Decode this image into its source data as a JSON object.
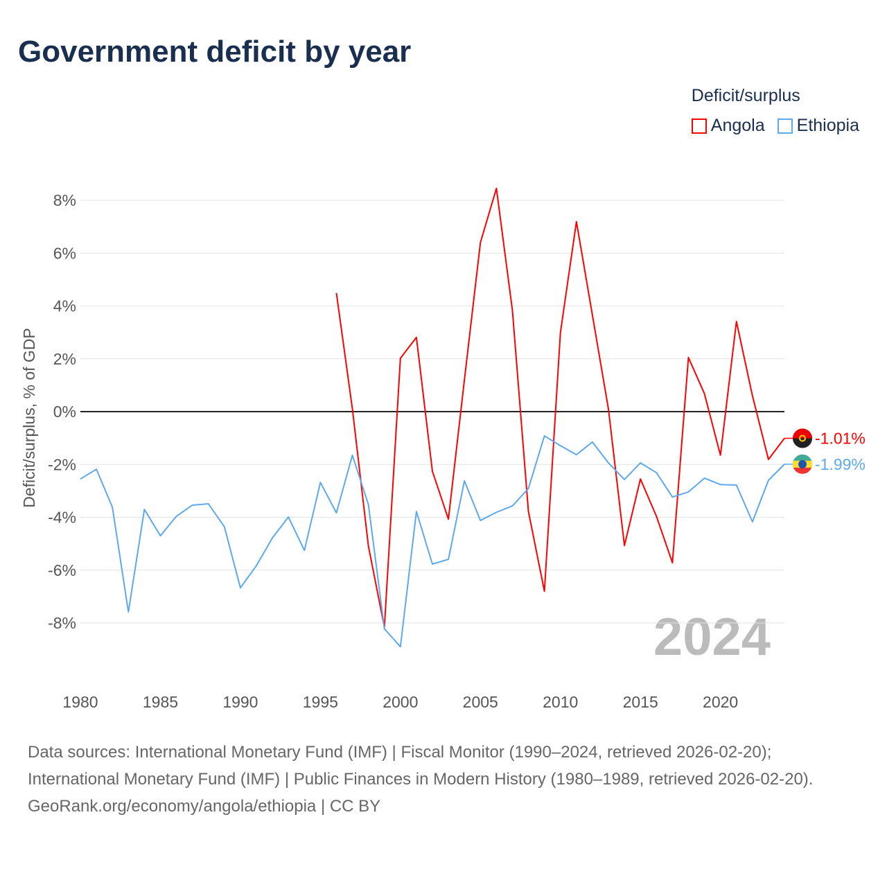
{
  "chart_data": {
    "type": "line",
    "title": "Government deficit by year",
    "xlabel": "",
    "ylabel": "Deficit/surplus, % of GDP",
    "xlim": [
      1980,
      2024
    ],
    "ylim": [
      -10,
      8.5
    ],
    "yticks": [
      8,
      6,
      4,
      2,
      0,
      -2,
      -4,
      -6,
      -8
    ],
    "ytick_labels": [
      "8%",
      "6%",
      "4%",
      "2%",
      "0%",
      "-2%",
      "-4%",
      "-6%",
      "-8%"
    ],
    "xticks": [
      1980,
      1985,
      1990,
      1995,
      2000,
      2005,
      2010,
      2015,
      2020
    ],
    "xtick_labels": [
      "1980",
      "1985",
      "1990",
      "1995",
      "2000",
      "2005",
      "2010",
      "2015",
      "2020"
    ],
    "grid": true,
    "legend_title": "Deficit/surplus",
    "legend_position": "top-right",
    "year_watermark": "2024",
    "series": [
      {
        "name": "Angola",
        "color": "#ff0000",
        "end_label": "-1.01%",
        "x": [
          1996,
          1997,
          1998,
          1999,
          2000,
          2001,
          2002,
          2003,
          2004,
          2005,
          2006,
          2007,
          2008,
          2009,
          2010,
          2011,
          2012,
          2013,
          2014,
          2015,
          2016,
          2017,
          2018,
          2019,
          2020,
          2021,
          2022,
          2023,
          2024
        ],
        "values": [
          4.49,
          0.1,
          -5.09,
          -8.16,
          2.02,
          2.81,
          -2.26,
          -4.07,
          1.2,
          6.4,
          8.45,
          3.83,
          -3.78,
          -6.8,
          2.99,
          7.19,
          3.65,
          0.1,
          -5.07,
          -2.55,
          -3.96,
          -5.72,
          2.05,
          0.68,
          -1.65,
          3.41,
          0.6,
          -1.81,
          -1.01
        ]
      },
      {
        "name": "Ethiopia",
        "color": "#5ea8ee",
        "end_label": "-1.99%",
        "x": [
          1980,
          1981,
          1982,
          1983,
          1984,
          1985,
          1986,
          1987,
          1988,
          1989,
          1990,
          1991,
          1992,
          1993,
          1994,
          1995,
          1996,
          1997,
          1998,
          1999,
          2000,
          2001,
          2002,
          2003,
          2004,
          2005,
          2006,
          2007,
          2008,
          2009,
          2010,
          2011,
          2012,
          2013,
          2014,
          2015,
          2016,
          2017,
          2018,
          2019,
          2020,
          2021,
          2022,
          2023,
          2024
        ],
        "values": [
          -2.55,
          -2.18,
          -3.62,
          -7.58,
          -3.7,
          -4.7,
          -3.96,
          -3.54,
          -3.49,
          -4.36,
          -6.67,
          -5.83,
          -4.78,
          -3.99,
          -5.25,
          -2.68,
          -3.83,
          -1.65,
          -3.52,
          -8.22,
          -8.9,
          -3.78,
          -5.77,
          -5.59,
          -2.62,
          -4.12,
          -3.81,
          -3.57,
          -2.91,
          -0.92,
          -1.29,
          -1.63,
          -1.15,
          -1.94,
          -2.57,
          -1.94,
          -2.31,
          -3.23,
          -3.04,
          -2.52,
          -2.76,
          -2.78,
          -4.17,
          -2.6,
          -1.99
        ]
      }
    ]
  },
  "footer": {
    "sources_line": "Data sources: International Monetary Fund (IMF) | Fiscal Monitor (1990–2024, retrieved 2026-02-20); International Monetary Fund (IMF) | Public Finances in Modern History (1980–1989, retrieved 2026-02-20).",
    "attribution": "GeoRank.org/economy/angola/ethiopia | CC BY"
  }
}
